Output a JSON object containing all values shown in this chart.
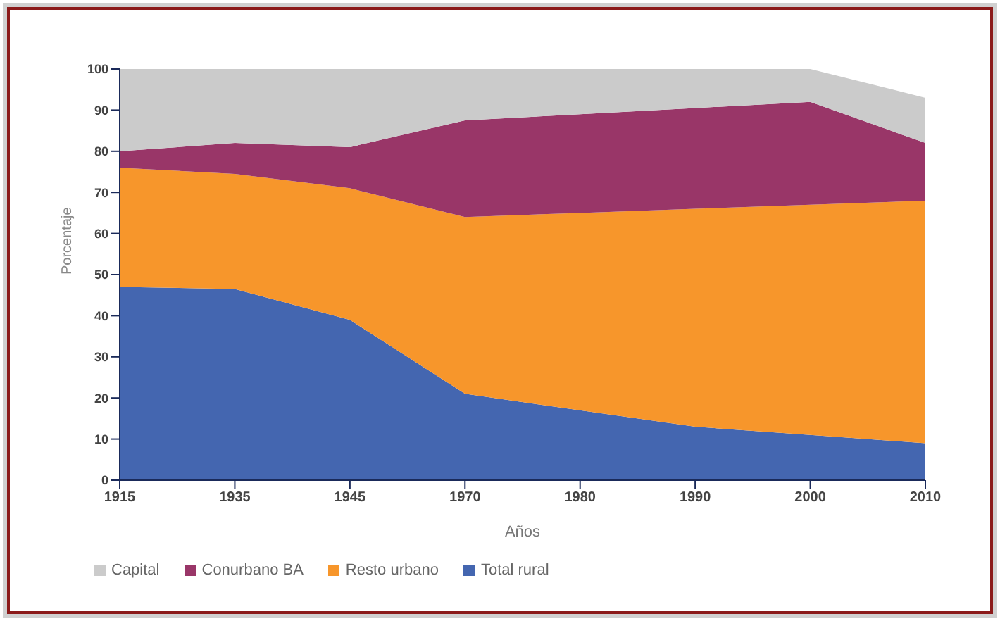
{
  "chart_data": {
    "type": "area",
    "stacked": true,
    "xlabel": "Años",
    "ylabel": "Porcentaje",
    "categories": [
      "1915",
      "1935",
      "1945",
      "1970",
      "1980",
      "1990",
      "2000",
      "2010"
    ],
    "ylim": [
      0,
      100
    ],
    "yticks": [
      0,
      10,
      20,
      30,
      40,
      50,
      60,
      70,
      80,
      90,
      100
    ],
    "grid": false,
    "legend": "bottom",
    "series": [
      {
        "name": "Total rural",
        "color": "#4466b0",
        "values": [
          47,
          46.5,
          39,
          21,
          17,
          13,
          11,
          9
        ]
      },
      {
        "name": "Resto urbano",
        "color": "#f7962b",
        "values": [
          29,
          28,
          32,
          43,
          48,
          53,
          56,
          59
        ]
      },
      {
        "name": "Conurbano BA",
        "color": "#993668",
        "values": [
          4,
          7.5,
          10,
          23.5,
          24,
          24.5,
          25,
          14
        ]
      },
      {
        "name": "Capital",
        "color": "#cbcbcb",
        "values": [
          20,
          18,
          19,
          12.5,
          11,
          9.5,
          8,
          11
        ]
      }
    ]
  }
}
